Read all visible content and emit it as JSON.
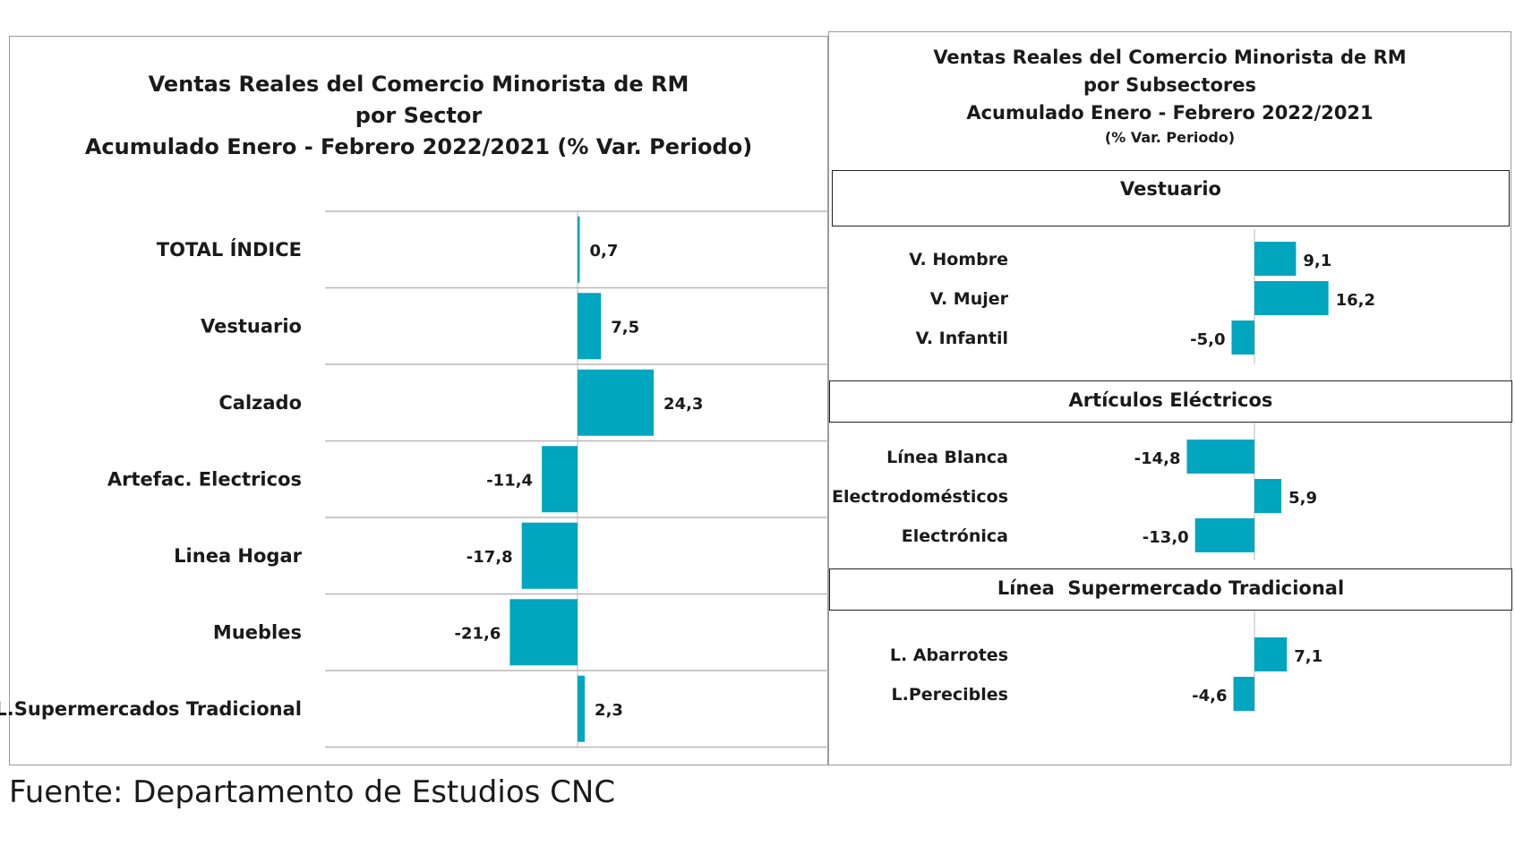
{
  "bar_color": "#00a5bf",
  "chart_data": [
    {
      "type": "bar",
      "orientation": "horizontal",
      "title": [
        "Ventas Reales del Comercio Minorista de RM",
        "por Sector",
        "Acumulado Enero - Febrero 2022/2021 (% Var. Periodo)"
      ],
      "categories": [
        "TOTAL ÍNDICE",
        "Vestuario",
        "Calzado",
        "Artefac. Electricos",
        "Linea Hogar",
        "Muebles",
        "L.Supermercados Tradicional"
      ],
      "values": [
        0.7,
        7.5,
        24.3,
        -11.4,
        -17.8,
        -21.6,
        2.3
      ],
      "value_labels": [
        "0,7",
        "7,5",
        "24,3",
        "-11,4",
        "-17,8",
        "-21,6",
        "2,3"
      ]
    },
    {
      "type": "bar",
      "orientation": "horizontal",
      "title": [
        "Ventas Reales del Comercio Minorista de RM",
        "por Subsectores",
        "Acumulado Enero - Febrero 2022/2021"
      ],
      "subtitle": "(% Var. Periodo)",
      "groups": [
        {
          "name": "Vestuario",
          "categories": [
            "V. Hombre",
            "V. Mujer",
            "V. Infantil"
          ],
          "values": [
            9.1,
            16.2,
            -5.0
          ],
          "value_labels": [
            "9,1",
            "16,2",
            "-5,0"
          ]
        },
        {
          "name": "Artículos Eléctricos",
          "categories": [
            "Línea Blanca",
            "Electrodomésticos",
            "Electrónica"
          ],
          "values": [
            -14.8,
            5.9,
            -13.0
          ],
          "value_labels": [
            "-14,8",
            "5,9",
            "-13,0"
          ]
        },
        {
          "name": "Línea  Supermercado Tradicional",
          "categories": [
            "L. Abarrotes",
            "L.Perecibles"
          ],
          "values": [
            7.1,
            -4.6
          ],
          "value_labels": [
            "7,1",
            "-4,6"
          ]
        }
      ]
    }
  ],
  "source": "Fuente: Departamento de Estudios CNC"
}
